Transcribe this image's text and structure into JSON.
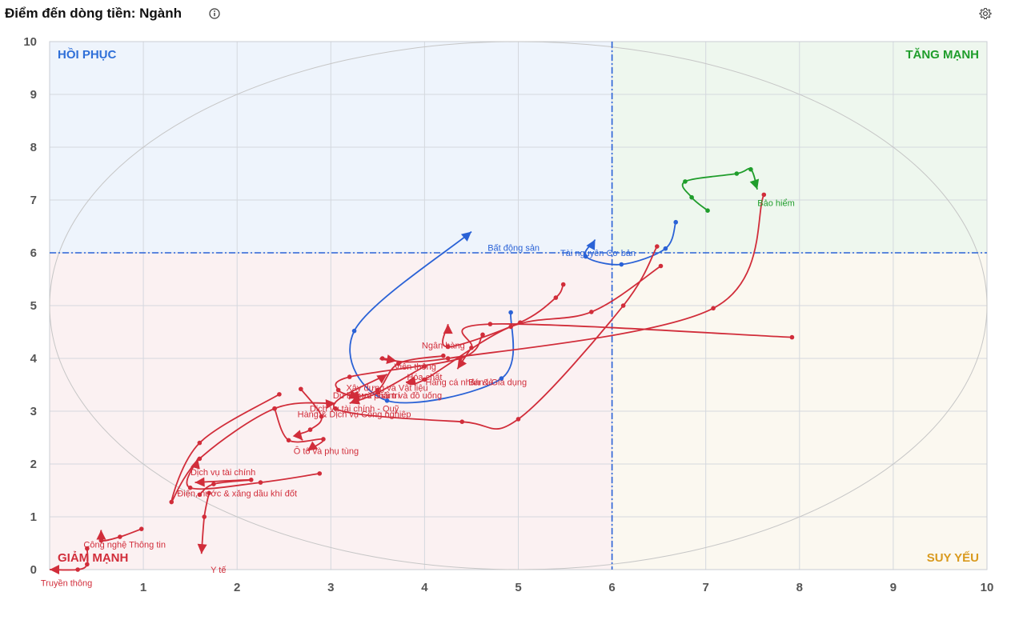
{
  "header": {
    "title": "Điểm đến dòng tiền: Ngành"
  },
  "icons": {
    "info": "info-icon",
    "settings": "gear-icon"
  },
  "colors": {
    "red": "#d12d3a",
    "blue": "#2a62d6",
    "green": "#1f9d2b",
    "q_recover": "#2f6fd8",
    "q_strong": "#1f9d2b",
    "q_down": "#d12d3a",
    "q_weak": "#d99a1e"
  },
  "chart_data": {
    "type": "scatter",
    "xlim": [
      0,
      10
    ],
    "ylim": [
      0,
      10
    ],
    "x_ticks": [
      "1",
      "2",
      "3",
      "4",
      "5",
      "6",
      "7",
      "8",
      "9",
      "10"
    ],
    "y_ticks": [
      "0",
      "1",
      "2",
      "3",
      "4",
      "5",
      "6",
      "7",
      "8",
      "9",
      "10"
    ],
    "threshold_x": 6,
    "threshold_y": 6,
    "grid": true,
    "quadrants": {
      "top_left": "HỒI PHỤC",
      "top_right": "TĂNG MẠNH",
      "bottom_left": "GIẢM MẠNH",
      "bottom_right": "SUY YẾU"
    },
    "series": [
      {
        "name": "Bảo hiểm",
        "color": "green",
        "label_at": [
          7.75,
          6.95
        ],
        "points": [
          [
            7.02,
            6.8
          ],
          [
            6.85,
            7.05
          ],
          [
            6.78,
            7.35
          ],
          [
            7.33,
            7.5
          ],
          [
            7.48,
            7.58
          ],
          [
            7.55,
            7.2
          ]
        ]
      },
      {
        "name": "Tài nguyên Cơ bản",
        "color": "blue",
        "label_at": [
          5.85,
          6.0
        ],
        "points": [
          [
            6.68,
            6.58
          ],
          [
            6.57,
            6.08
          ],
          [
            6.1,
            5.78
          ],
          [
            5.72,
            5.93
          ],
          [
            5.82,
            6.25
          ]
        ]
      },
      {
        "name": "Bất động sản",
        "color": "blue",
        "label_at": [
          4.95,
          6.1
        ],
        "points": [
          [
            4.92,
            4.87
          ],
          [
            4.82,
            3.62
          ],
          [
            3.6,
            3.2
          ],
          [
            3.25,
            4.52
          ],
          [
            4.5,
            6.4
          ]
        ]
      },
      {
        "name": "Ngân hàng",
        "color": "red",
        "label_at": [
          4.2,
          4.25
        ],
        "points": [
          [
            5.48,
            5.4
          ],
          [
            5.4,
            5.15
          ],
          [
            5.02,
            4.68
          ],
          [
            4.25,
            4.22
          ],
          [
            4.25,
            4.65
          ]
        ]
      },
      {
        "name": "Viễn thông",
        "color": "red",
        "label_at": [
          3.9,
          3.85
        ],
        "points": [
          [
            7.62,
            7.1
          ],
          [
            7.08,
            4.95
          ],
          [
            4.25,
            4.0
          ],
          [
            3.55,
            4.0
          ],
          [
            3.7,
            3.95
          ]
        ]
      },
      {
        "name": "Hàng cá nhân & Gia dụng",
        "color": "red",
        "label_at": [
          4.55,
          3.55
        ],
        "points": [
          [
            6.52,
            5.75
          ],
          [
            5.78,
            4.88
          ],
          [
            4.92,
            4.6
          ],
          [
            4.0,
            3.6
          ],
          [
            3.8,
            3.55
          ]
        ]
      },
      {
        "name": "Hóa chất",
        "color": "red",
        "label_at": [
          4.0,
          3.65
        ],
        "points": [
          [
            6.48,
            6.12
          ],
          [
            6.12,
            5.0
          ],
          [
            5.0,
            2.85
          ],
          [
            4.4,
            2.8
          ],
          [
            3.05,
            3.05
          ],
          [
            3.6,
            3.7
          ]
        ]
      },
      {
        "name": "Bán lẻ",
        "color": "red",
        "label_at": [
          4.6,
          3.55
        ],
        "points": [
          [
            7.92,
            4.4
          ],
          [
            4.7,
            4.65
          ],
          [
            4.5,
            4.2
          ],
          [
            4.35,
            3.8
          ]
        ]
      },
      {
        "name": "Xây dựng và Vật liệu",
        "color": "red",
        "label_at": [
          3.6,
          3.45
        ],
        "points": [
          [
            4.62,
            4.45
          ],
          [
            4.38,
            4.0
          ],
          [
            3.2,
            3.65
          ],
          [
            3.08,
            3.4
          ],
          [
            3.3,
            3.25
          ]
        ]
      },
      {
        "name": "Thực phẩm và đồ uống",
        "color": "red",
        "label_at": [
          3.7,
          3.3
        ],
        "points": [
          [
            4.2,
            4.05
          ],
          [
            3.72,
            3.9
          ],
          [
            3.5,
            3.4
          ],
          [
            3.2,
            3.25
          ]
        ]
      },
      {
        "name": "Du lịch và Giải trí",
        "color": "red",
        "label_at": [
          3.38,
          3.3
        ],
        "points": [
          [
            4.0,
            3.85
          ],
          [
            3.5,
            3.35
          ],
          [
            3.2,
            3.15
          ]
        ]
      },
      {
        "name": "Dịch vụ tài chính - Quỹ",
        "color": "red",
        "label_at": [
          3.25,
          3.05
        ],
        "points": [
          [
            2.45,
            3.32
          ],
          [
            1.6,
            2.4
          ],
          [
            1.3,
            1.28
          ],
          [
            1.6,
            2.1
          ],
          [
            2.4,
            3.05
          ],
          [
            3.05,
            3.15
          ]
        ]
      },
      {
        "name": "Hàng & Dịch vụ Công nghiệp",
        "color": "red",
        "label_at": [
          3.25,
          2.95
        ],
        "points": [
          [
            2.4,
            3.05
          ],
          [
            2.55,
            2.45
          ],
          [
            2.92,
            2.47
          ],
          [
            2.75,
            2.25
          ]
        ]
      },
      {
        "name": "Ô tô và phụ tùng",
        "color": "red",
        "label_at": [
          2.95,
          2.25
        ],
        "points": [
          [
            2.68,
            3.42
          ],
          [
            2.9,
            2.9
          ],
          [
            2.78,
            2.65
          ],
          [
            2.65,
            2.55
          ],
          [
            2.7,
            2.45
          ]
        ]
      },
      {
        "name": "Dịch vụ tài chính",
        "color": "red",
        "label_at": [
          1.85,
          1.85
        ],
        "points": [
          [
            2.88,
            1.82
          ],
          [
            2.25,
            1.65
          ],
          [
            1.5,
            1.55
          ],
          [
            1.58,
            2.1
          ]
        ]
      },
      {
        "name": "Điện, nước & xăng dầu khí đốt",
        "color": "red",
        "label_at": [
          2.0,
          1.45
        ],
        "points": [
          [
            1.6,
            1.42
          ],
          [
            1.75,
            1.62
          ],
          [
            2.15,
            1.7
          ],
          [
            1.55,
            1.65
          ]
        ]
      },
      {
        "name": "Công nghệ Thông tin",
        "color": "red",
        "label_at": [
          0.8,
          0.48
        ],
        "points": [
          [
            0.98,
            0.77
          ],
          [
            0.75,
            0.62
          ],
          [
            0.55,
            0.55
          ],
          [
            0.55,
            0.75
          ]
        ]
      },
      {
        "name": "Y tế",
        "color": "red",
        "label_at": [
          1.8,
          0.0
        ],
        "points": [
          [
            1.7,
            1.45
          ],
          [
            1.65,
            1.0
          ],
          [
            1.62,
            0.3
          ]
        ]
      },
      {
        "name": "Truyền thông",
        "color": "red",
        "label_at": [
          0.18,
          -0.25
        ],
        "points": [
          [
            0.4,
            0.4
          ],
          [
            0.4,
            0.1
          ],
          [
            0.3,
            0.0
          ],
          [
            0.0,
            0.0
          ]
        ]
      }
    ]
  }
}
